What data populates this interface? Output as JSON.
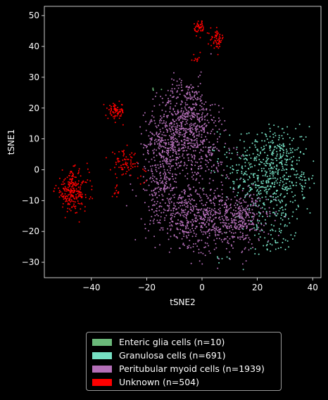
{
  "chart_data": {
    "type": "scatter",
    "title": "",
    "xlabel": "tSNE2",
    "ylabel": "tSNE1",
    "xlim": [
      -57,
      43
    ],
    "ylim": [
      -35,
      53
    ],
    "xticks": [
      -40,
      -20,
      0,
      20,
      40
    ],
    "yticks": [
      -30,
      -20,
      -10,
      0,
      10,
      20,
      30,
      40,
      50
    ],
    "xtick_labels": [
      "−40",
      "−20",
      "0",
      "20",
      "40"
    ],
    "ytick_labels": [
      "−30",
      "−20",
      "−10",
      "0",
      "10",
      "20",
      "30",
      "40",
      "50"
    ],
    "grid": false,
    "legend_position": "below",
    "series": [
      {
        "name": "Enteric glia cells (n=10)",
        "color": "#6bb97a",
        "count": 10,
        "clusters": [
          {
            "center": [
              -18,
              26.5
            ],
            "spread": [
              1.2,
              0.6
            ],
            "n": 4
          },
          {
            "center": [
              9,
              -10
            ],
            "spread": [
              6,
              8
            ],
            "n": 6
          }
        ]
      },
      {
        "name": "Granulosa cells (n=691)",
        "color": "#76e0c3",
        "count": 691,
        "clusters": [
          {
            "center": [
              25,
              -3
            ],
            "spread": [
              6.5,
              7
            ],
            "n": 420
          },
          {
            "center": [
              28,
              6
            ],
            "spread": [
              5,
              4
            ],
            "n": 90
          },
          {
            "center": [
              26,
              -18
            ],
            "spread": [
              4,
              4
            ],
            "n": 70
          },
          {
            "center": [
              16,
              4
            ],
            "spread": [
              5,
              5
            ],
            "n": 70
          },
          {
            "center": [
              24,
              -26
            ],
            "spread": [
              2.5,
              1.5
            ],
            "n": 14
          },
          {
            "center": [
              3,
              6
            ],
            "spread": [
              1,
              1
            ],
            "n": 3
          },
          {
            "center": [
              6,
              -29
            ],
            "spread": [
              3,
              1
            ],
            "n": 6
          },
          {
            "center": [
              37,
              -5
            ],
            "spread": [
              1.5,
              3
            ],
            "n": 18
          }
        ]
      },
      {
        "name": "Peritubular myoid cells (n=1939)",
        "color": "#b46fb8",
        "count": 1939,
        "clusters": [
          {
            "center": [
              -5,
              17
            ],
            "spread": [
              5,
              6
            ],
            "n": 420
          },
          {
            "center": [
              -13,
              8
            ],
            "spread": [
              4,
              6
            ],
            "n": 330
          },
          {
            "center": [
              0,
              5
            ],
            "spread": [
              5,
              6
            ],
            "n": 200
          },
          {
            "center": [
              5,
              -16
            ],
            "spread": [
              7.5,
              5.5
            ],
            "n": 430
          },
          {
            "center": [
              -8,
              -14
            ],
            "spread": [
              6,
              5
            ],
            "n": 260
          },
          {
            "center": [
              15,
              -16
            ],
            "spread": [
              5,
              4
            ],
            "n": 180
          },
          {
            "center": [
              -15,
              -5
            ],
            "spread": [
              4,
              4
            ],
            "n": 110
          },
          {
            "center": [
              -6,
              26
            ],
            "spread": [
              3,
              1.5
            ],
            "n": 9
          }
        ]
      },
      {
        "name": "Unknown (n=504)",
        "color": "#ff0000",
        "count": 504,
        "clusters": [
          {
            "center": [
              -47,
              -7
            ],
            "spread": [
              3,
              3.2
            ],
            "n": 230
          },
          {
            "center": [
              -31,
              19
            ],
            "spread": [
              1.5,
              1.3
            ],
            "n": 75
          },
          {
            "center": [
              -28,
              2
            ],
            "spread": [
              2.5,
              2
            ],
            "n": 70
          },
          {
            "center": [
              -31,
              -7.5
            ],
            "spread": [
              0.6,
              1.2
            ],
            "n": 12
          },
          {
            "center": [
              -1,
              46
            ],
            "spread": [
              1,
              1.2
            ],
            "n": 42
          },
          {
            "center": [
              5.5,
              42.5
            ],
            "spread": [
              1.2,
              1.5
            ],
            "n": 55
          },
          {
            "center": [
              -2,
              36
            ],
            "spread": [
              1.5,
              0.8
            ],
            "n": 10
          },
          {
            "center": [
              -22,
              -2
            ],
            "spread": [
              1.5,
              1.5
            ],
            "n": 10
          }
        ]
      }
    ]
  }
}
